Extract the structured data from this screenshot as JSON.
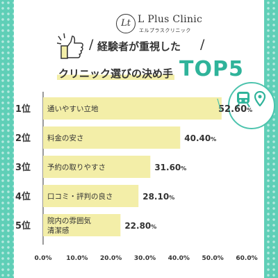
{
  "brand": {
    "name": "L Plus Clinic",
    "kana": "エルプラスクリニック",
    "mark": "Lt"
  },
  "title": {
    "line1": "経験者が重視した",
    "line2": "クリニック選びの決め手",
    "big": "TOP5"
  },
  "colors": {
    "background": "#5fcfb7",
    "bar": "#f3eea8",
    "accent": "#2fb39a",
    "text": "#333333"
  },
  "icons": [
    "thumbs-up-icon",
    "train-icon",
    "location-pin-icon"
  ],
  "chart_data": {
    "type": "bar",
    "orientation": "horizontal",
    "ranks": [
      "1位",
      "2位",
      "3位",
      "4位",
      "5位"
    ],
    "categories": [
      "通いやすい立地",
      "料金の安さ",
      "予約の取りやすさ",
      "口コミ・評判の良さ",
      "院内の雰囲気\n清潔感"
    ],
    "values": [
      52.6,
      40.4,
      31.6,
      28.1,
      22.8
    ],
    "value_labels": [
      "52.60%",
      "40.40%",
      "31.60%",
      "28.10%",
      "22.80%"
    ],
    "xlim": [
      0,
      60
    ],
    "xticks": [
      "0.0%",
      "10.0%",
      "20.0%",
      "30.0%",
      "40.0%",
      "50.0%",
      "60.0%"
    ],
    "grid": false,
    "title": "クリニック選びの決め手 TOP5"
  }
}
